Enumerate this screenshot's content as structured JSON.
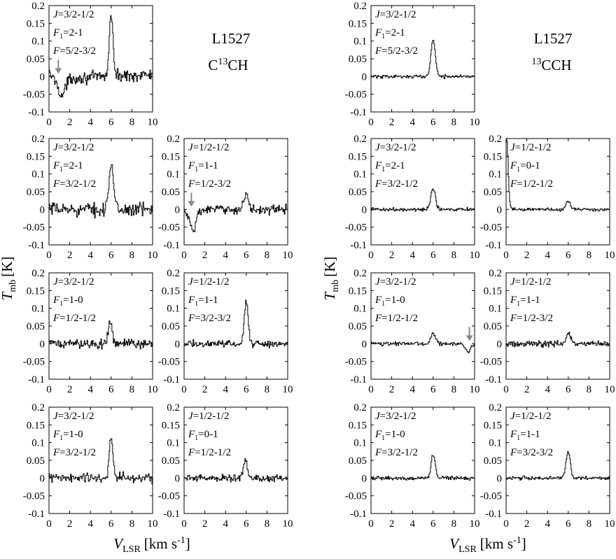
{
  "figure": {
    "ylabel_main": "T",
    "ylabel_sub": "mb",
    "ylabel_unit": "[K]",
    "xlabel_main": "V",
    "xlabel_sub": "LSR",
    "xlabel_unit": "[km s",
    "xlabel_exp": "-1",
    "xlabel_close": "]"
  },
  "blocks": [
    {
      "source": "L1527",
      "species_pre": "C",
      "species_sup": "13",
      "species_post": "CH"
    },
    {
      "source": "L1527",
      "species_pre": "",
      "species_sup": "13",
      "species_post": "CCH"
    }
  ],
  "chart_data": [
    {
      "type": "line",
      "block": 0,
      "row": 0,
      "col": 0,
      "xlim": [
        0,
        10
      ],
      "ylim": [
        -0.1,
        0.2
      ],
      "xticks": [
        "0",
        "2",
        "4",
        "6",
        "8",
        "10"
      ],
      "yticks": [
        "-0.1",
        "-0.05",
        "0",
        "0.05",
        "0.1",
        "0.15",
        "0.2"
      ],
      "labels": [
        "J=3/2-1/2",
        "F1=2-1",
        "F=5/2-3/2"
      ],
      "peaks": [
        {
          "x": 6.0,
          "y": 0.175,
          "w": 0.18
        }
      ],
      "baseline": [
        [
          0,
          0.01
        ],
        [
          0.8,
          -0.02
        ],
        [
          1.2,
          -0.06
        ],
        [
          2,
          -0.005
        ],
        [
          10,
          0.005
        ]
      ],
      "noise": 0.013,
      "arrow_x": 0.9
    },
    {
      "type": "line",
      "block": 0,
      "row": 1,
      "col": 0,
      "xlim": [
        0,
        10
      ],
      "ylim": [
        -0.1,
        0.2
      ],
      "xticks": [
        "0",
        "2",
        "4",
        "6",
        "8",
        "10"
      ],
      "yticks": [
        "-0.1",
        "-0.05",
        "0",
        "0.05",
        "0.1",
        "0.15",
        "0.2"
      ],
      "labels": [
        "J=3/2-1/2",
        "F1=2-1",
        "F=3/2-1/2"
      ],
      "peaks": [
        {
          "x": 6.0,
          "y": 0.125,
          "w": 0.22
        }
      ],
      "baseline": [
        [
          0,
          0.0
        ],
        [
          10,
          0.0
        ]
      ],
      "noise": 0.015,
      "arrow_x": null
    },
    {
      "type": "line",
      "block": 0,
      "row": 1,
      "col": 1,
      "xlim": [
        0,
        10
      ],
      "ylim": [
        -0.1,
        0.2
      ],
      "xticks": [
        "0",
        "2",
        "4",
        "6",
        "8",
        "10"
      ],
      "yticks": [
        "-0.1",
        "-0.05",
        "0",
        "0.05",
        "0.1",
        "0.15",
        "0.2"
      ],
      "labels": [
        "J=1/2-1/2",
        "F1=1-1",
        "F=1/2-3/2"
      ],
      "peaks": [
        {
          "x": 6.0,
          "y": 0.045,
          "w": 0.2
        }
      ],
      "baseline": [
        [
          0,
          0.0
        ],
        [
          0.5,
          -0.03
        ],
        [
          0.9,
          -0.065
        ],
        [
          1.4,
          -0.01
        ],
        [
          2,
          0.0
        ],
        [
          10,
          0.0
        ]
      ],
      "noise": 0.01,
      "arrow_x": 0.7
    },
    {
      "type": "line",
      "block": 0,
      "row": 2,
      "col": 0,
      "xlim": [
        0,
        10
      ],
      "ylim": [
        -0.1,
        0.2
      ],
      "xticks": [
        "0",
        "2",
        "4",
        "6",
        "8",
        "10"
      ],
      "yticks": [
        "-0.1",
        "-0.05",
        "0",
        "0.05",
        "0.1",
        "0.15",
        "0.2"
      ],
      "labels": [
        "J=3/2-1/2",
        "F1=1-0",
        "F=1/2-1/2"
      ],
      "peaks": [
        {
          "x": 5.9,
          "y": 0.06,
          "w": 0.2
        }
      ],
      "baseline": [
        [
          0,
          0.0
        ],
        [
          10,
          0.0
        ]
      ],
      "noise": 0.011,
      "arrow_x": null
    },
    {
      "type": "line",
      "block": 0,
      "row": 2,
      "col": 1,
      "xlim": [
        0,
        10
      ],
      "ylim": [
        -0.1,
        0.2
      ],
      "xticks": [
        "0",
        "2",
        "4",
        "6",
        "8",
        "10"
      ],
      "yticks": [
        "-0.1",
        "-0.05",
        "0",
        "0.05",
        "0.1",
        "0.15",
        "0.2"
      ],
      "labels": [
        "J=1/2-1/2",
        "F1=1-1",
        "F=3/2-3/2"
      ],
      "peaks": [
        {
          "x": 6.0,
          "y": 0.12,
          "w": 0.18
        }
      ],
      "baseline": [
        [
          0,
          0.0
        ],
        [
          10,
          0.0
        ]
      ],
      "noise": 0.008,
      "arrow_x": null
    },
    {
      "type": "line",
      "block": 0,
      "row": 3,
      "col": 0,
      "xlim": [
        0,
        10
      ],
      "ylim": [
        -0.1,
        0.2
      ],
      "xticks": [
        "0",
        "2",
        "4",
        "6",
        "8",
        "10"
      ],
      "yticks": [
        "-0.1",
        "-0.05",
        "0",
        "0.05",
        "0.1",
        "0.15",
        "0.2"
      ],
      "labels": [
        "J=3/2-1/2",
        "F1=1-0",
        "F=3/2-1/2"
      ],
      "peaks": [
        {
          "x": 6.0,
          "y": 0.11,
          "w": 0.18
        }
      ],
      "baseline": [
        [
          0,
          0.0
        ],
        [
          10,
          0.0
        ]
      ],
      "noise": 0.012,
      "arrow_x": null
    },
    {
      "type": "line",
      "block": 0,
      "row": 3,
      "col": 1,
      "xlim": [
        0,
        10
      ],
      "ylim": [
        -0.1,
        0.2
      ],
      "xticks": [
        "0",
        "2",
        "4",
        "6",
        "8",
        "10"
      ],
      "yticks": [
        "-0.1",
        "-0.05",
        "0",
        "0.05",
        "0.1",
        "0.15",
        "0.2"
      ],
      "labels": [
        "J=1/2-1/2",
        "F1=0-1",
        "F=1/2-1/2"
      ],
      "peaks": [
        {
          "x": 5.9,
          "y": 0.052,
          "w": 0.18
        }
      ],
      "baseline": [
        [
          0,
          0.0
        ],
        [
          10,
          0.0
        ]
      ],
      "noise": 0.008,
      "arrow_x": null
    },
    {
      "type": "line",
      "block": 1,
      "row": 0,
      "col": 0,
      "xlim": [
        0,
        10
      ],
      "ylim": [
        -0.1,
        0.2
      ],
      "xticks": [
        "0",
        "2",
        "4",
        "6",
        "8",
        "10"
      ],
      "yticks": [
        "-0.1",
        "-0.05",
        "0",
        "0.05",
        "0.1",
        "0.15",
        "0.2"
      ],
      "labels": [
        "J=3/2-1/2",
        "F1=2-1",
        "F=5/2-3/2"
      ],
      "peaks": [
        {
          "x": 6.0,
          "y": 0.1,
          "w": 0.22
        }
      ],
      "baseline": [
        [
          0,
          0.0
        ],
        [
          10,
          0.0
        ]
      ],
      "noise": 0.004,
      "arrow_x": null
    },
    {
      "type": "line",
      "block": 1,
      "row": 1,
      "col": 0,
      "xlim": [
        0,
        10
      ],
      "ylim": [
        -0.1,
        0.2
      ],
      "xticks": [
        "0",
        "2",
        "4",
        "6",
        "8",
        "10"
      ],
      "yticks": [
        "-0.1",
        "-0.05",
        "0",
        "0.05",
        "0.1",
        "0.15",
        "0.2"
      ],
      "labels": [
        "J=3/2-1/2",
        "F1=2-1",
        "F=3/2-1/2"
      ],
      "peaks": [
        {
          "x": 6.0,
          "y": 0.058,
          "w": 0.22
        }
      ],
      "baseline": [
        [
          0,
          0.0
        ],
        [
          10,
          0.0
        ]
      ],
      "noise": 0.004,
      "arrow_x": null
    },
    {
      "type": "line",
      "block": 1,
      "row": 1,
      "col": 1,
      "xlim": [
        0,
        10
      ],
      "ylim": [
        -0.1,
        0.2
      ],
      "xticks": [
        "0",
        "2",
        "4",
        "6",
        "8",
        "10"
      ],
      "yticks": [
        "-0.1",
        "-0.05",
        "0",
        "0.05",
        "0.1",
        "0.15",
        "0.2"
      ],
      "labels": [
        "J=1/2-1/2",
        "F1=0-1",
        "F=1/2-1/2"
      ],
      "peaks": [
        {
          "x": 6.0,
          "y": 0.025,
          "w": 0.2
        },
        {
          "x": 0.05,
          "y": 0.2,
          "w": 0.15
        }
      ],
      "baseline": [
        [
          0,
          0.0
        ],
        [
          10,
          0.0
        ]
      ],
      "noise": 0.004,
      "arrow_x": null
    },
    {
      "type": "line",
      "block": 1,
      "row": 2,
      "col": 0,
      "xlim": [
        0,
        10
      ],
      "ylim": [
        -0.1,
        0.2
      ],
      "xticks": [
        "0",
        "2",
        "4",
        "6",
        "8",
        "10"
      ],
      "yticks": [
        "-0.1",
        "-0.05",
        "0",
        "0.05",
        "0.1",
        "0.15",
        "0.2"
      ],
      "labels": [
        "J=3/2-1/2",
        "F1=1-0",
        "F=1/2-1/2"
      ],
      "peaks": [
        {
          "x": 6.0,
          "y": 0.03,
          "w": 0.22
        }
      ],
      "baseline": [
        [
          0,
          0.0
        ],
        [
          8.8,
          0.0
        ],
        [
          9.4,
          -0.025
        ],
        [
          9.8,
          -0.005
        ],
        [
          10,
          0.0
        ]
      ],
      "noise": 0.004,
      "arrow_x": 9.5
    },
    {
      "type": "line",
      "block": 1,
      "row": 2,
      "col": 1,
      "xlim": [
        0,
        10
      ],
      "ylim": [
        -0.1,
        0.2
      ],
      "xticks": [
        "0",
        "2",
        "4",
        "6",
        "8",
        "10"
      ],
      "yticks": [
        "-0.1",
        "-0.05",
        "0",
        "0.05",
        "0.1",
        "0.15",
        "0.2"
      ],
      "labels": [
        "J=1/2-1/2",
        "F1=1-1",
        "F=1/2-3/2"
      ],
      "peaks": [
        {
          "x": 6.0,
          "y": 0.03,
          "w": 0.22
        }
      ],
      "baseline": [
        [
          0,
          0.0
        ],
        [
          10,
          0.0
        ]
      ],
      "noise": 0.007,
      "arrow_x": null
    },
    {
      "type": "line",
      "block": 1,
      "row": 3,
      "col": 0,
      "xlim": [
        0,
        10
      ],
      "ylim": [
        -0.1,
        0.2
      ],
      "xticks": [
        "0",
        "2",
        "4",
        "6",
        "8",
        "10"
      ],
      "yticks": [
        "-0.1",
        "-0.05",
        "0",
        "0.05",
        "0.1",
        "0.15",
        "0.2"
      ],
      "labels": [
        "J=3/2-1/2",
        "F1=1-0",
        "F=3/2-1/2"
      ],
      "peaks": [
        {
          "x": 6.0,
          "y": 0.065,
          "w": 0.2
        }
      ],
      "baseline": [
        [
          0,
          0.0
        ],
        [
          10,
          0.0
        ]
      ],
      "noise": 0.004,
      "arrow_x": null
    },
    {
      "type": "line",
      "block": 1,
      "row": 3,
      "col": 1,
      "xlim": [
        0,
        10
      ],
      "ylim": [
        -0.1,
        0.2
      ],
      "xticks": [
        "0",
        "2",
        "4",
        "6",
        "8",
        "10"
      ],
      "yticks": [
        "-0.1",
        "-0.05",
        "0",
        "0.05",
        "0.1",
        "0.15",
        "0.2"
      ],
      "labels": [
        "J=1/2-1/2",
        "F1=1-1",
        "F=3/2-3/2"
      ],
      "peaks": [
        {
          "x": 6.0,
          "y": 0.075,
          "w": 0.2
        }
      ],
      "baseline": [
        [
          0,
          0.0
        ],
        [
          10,
          0.0
        ]
      ],
      "noise": 0.004,
      "arrow_x": null
    }
  ]
}
